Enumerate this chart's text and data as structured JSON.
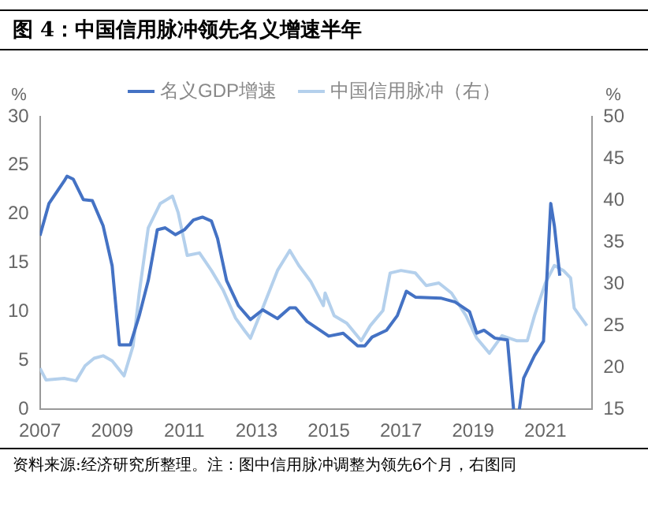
{
  "chart_data": {
    "type": "line",
    "title": "图 4：中国信用脉冲领先名义增速半年",
    "ylabel": "%",
    "y2label": "%",
    "xlim": [
      2007,
      2022.3
    ],
    "xticks": [
      2007,
      2009,
      2011,
      2013,
      2015,
      2017,
      2019,
      2021
    ],
    "ylim": [
      0,
      30
    ],
    "yticks": [
      0,
      5,
      10,
      15,
      20,
      25,
      30
    ],
    "y2lim": [
      15,
      50
    ],
    "y2ticks": [
      15,
      20,
      25,
      30,
      35,
      40,
      45,
      50
    ],
    "grid": false,
    "legend": "top",
    "marker": "none",
    "line_style": "solid",
    "annotations": [
      "资料来源:经济研究所整理。注：图中信用脉冲调整为领先6个月，右图同"
    ],
    "series": [
      {
        "name": "名义GDP增速",
        "color": "#4472c4",
        "x": [
          2007,
          2007.25,
          2007.67,
          2007.75,
          2007.92,
          2008.2,
          2008.45,
          2008.75,
          2009,
          2009.2,
          2009.5,
          2009.75,
          2010,
          2010.25,
          2010.47,
          2010.75,
          2011,
          2011.25,
          2011.5,
          2011.75,
          2011.92,
          2012.17,
          2012.5,
          2012.83,
          2013.17,
          2013.58,
          2013.92,
          2014.08,
          2014.4,
          2015,
          2015.4,
          2015.8,
          2016,
          2016.2,
          2016.6,
          2016.9,
          2017.15,
          2017.4,
          2018.1,
          2018.5,
          2018.9,
          2019.1,
          2019.3,
          2019.6,
          2019.95,
          2020.12,
          2020.2,
          2020.28,
          2020.4,
          2020.7,
          2020.95,
          2021.15,
          2021.25,
          2021.4
        ],
        "values": [
          17.8,
          21.1,
          23.4,
          23.9,
          23.6,
          21.5,
          21.4,
          18.8,
          14.7,
          6.6,
          6.6,
          9.6,
          13.2,
          18.4,
          18.6,
          17.9,
          18.4,
          19.4,
          19.7,
          19.3,
          17.5,
          13.2,
          10.6,
          9.2,
          10.2,
          9.3,
          10.4,
          10.4,
          9,
          7.5,
          7.8,
          6.5,
          6.5,
          7.4,
          8.1,
          9.6,
          12.1,
          11.5,
          11.4,
          11,
          10,
          7.8,
          8.1,
          7.3,
          7.1,
          0,
          null,
          0,
          3.2,
          5.5,
          7,
          21.1,
          18.8,
          13.7
        ]
      },
      {
        "name": "中国信用脉冲（右）",
        "color": "#b4d0ec",
        "axis": "y2",
        "x": [
          2007,
          2007.17,
          2007.67,
          2008,
          2008.25,
          2008.5,
          2008.75,
          2009,
          2009.33,
          2009.58,
          2009.75,
          2010,
          2010.33,
          2010.67,
          2010.83,
          2011.08,
          2011.42,
          2011.75,
          2012.08,
          2012.42,
          2012.67,
          2012.83,
          2013.17,
          2013.58,
          2013.92,
          2014.17,
          2014.5,
          2014.85,
          2014.9,
          2015.15,
          2015.5,
          2015.9,
          2016.15,
          2016.5,
          2016.7,
          2017,
          2017.4,
          2017.7,
          2018.05,
          2018.4,
          2018.8,
          2019.1,
          2019.45,
          2019.8,
          2020.2,
          2020.5,
          2020.7,
          2021,
          2021.25,
          2021.5,
          2021.7,
          2021.8,
          2022.15
        ],
        "values": [
          19.9,
          18.5,
          18.7,
          18.4,
          20.2,
          21.1,
          21.4,
          20.8,
          19,
          22.6,
          28.9,
          36.7,
          39.6,
          40.5,
          38.5,
          33.4,
          33.7,
          31.6,
          29.2,
          25.9,
          24.4,
          23.5,
          27.1,
          31.6,
          34,
          32.2,
          30.3,
          27.4,
          28.9,
          26.2,
          25.3,
          23.2,
          25,
          26.8,
          31.3,
          31.6,
          31.3,
          29.8,
          30.1,
          28.9,
          26.2,
          23.5,
          21.7,
          23.8,
          23.2,
          23.2,
          26.2,
          30.1,
          32.2,
          31.6,
          30.7,
          27.1,
          25
        ]
      }
    ]
  }
}
